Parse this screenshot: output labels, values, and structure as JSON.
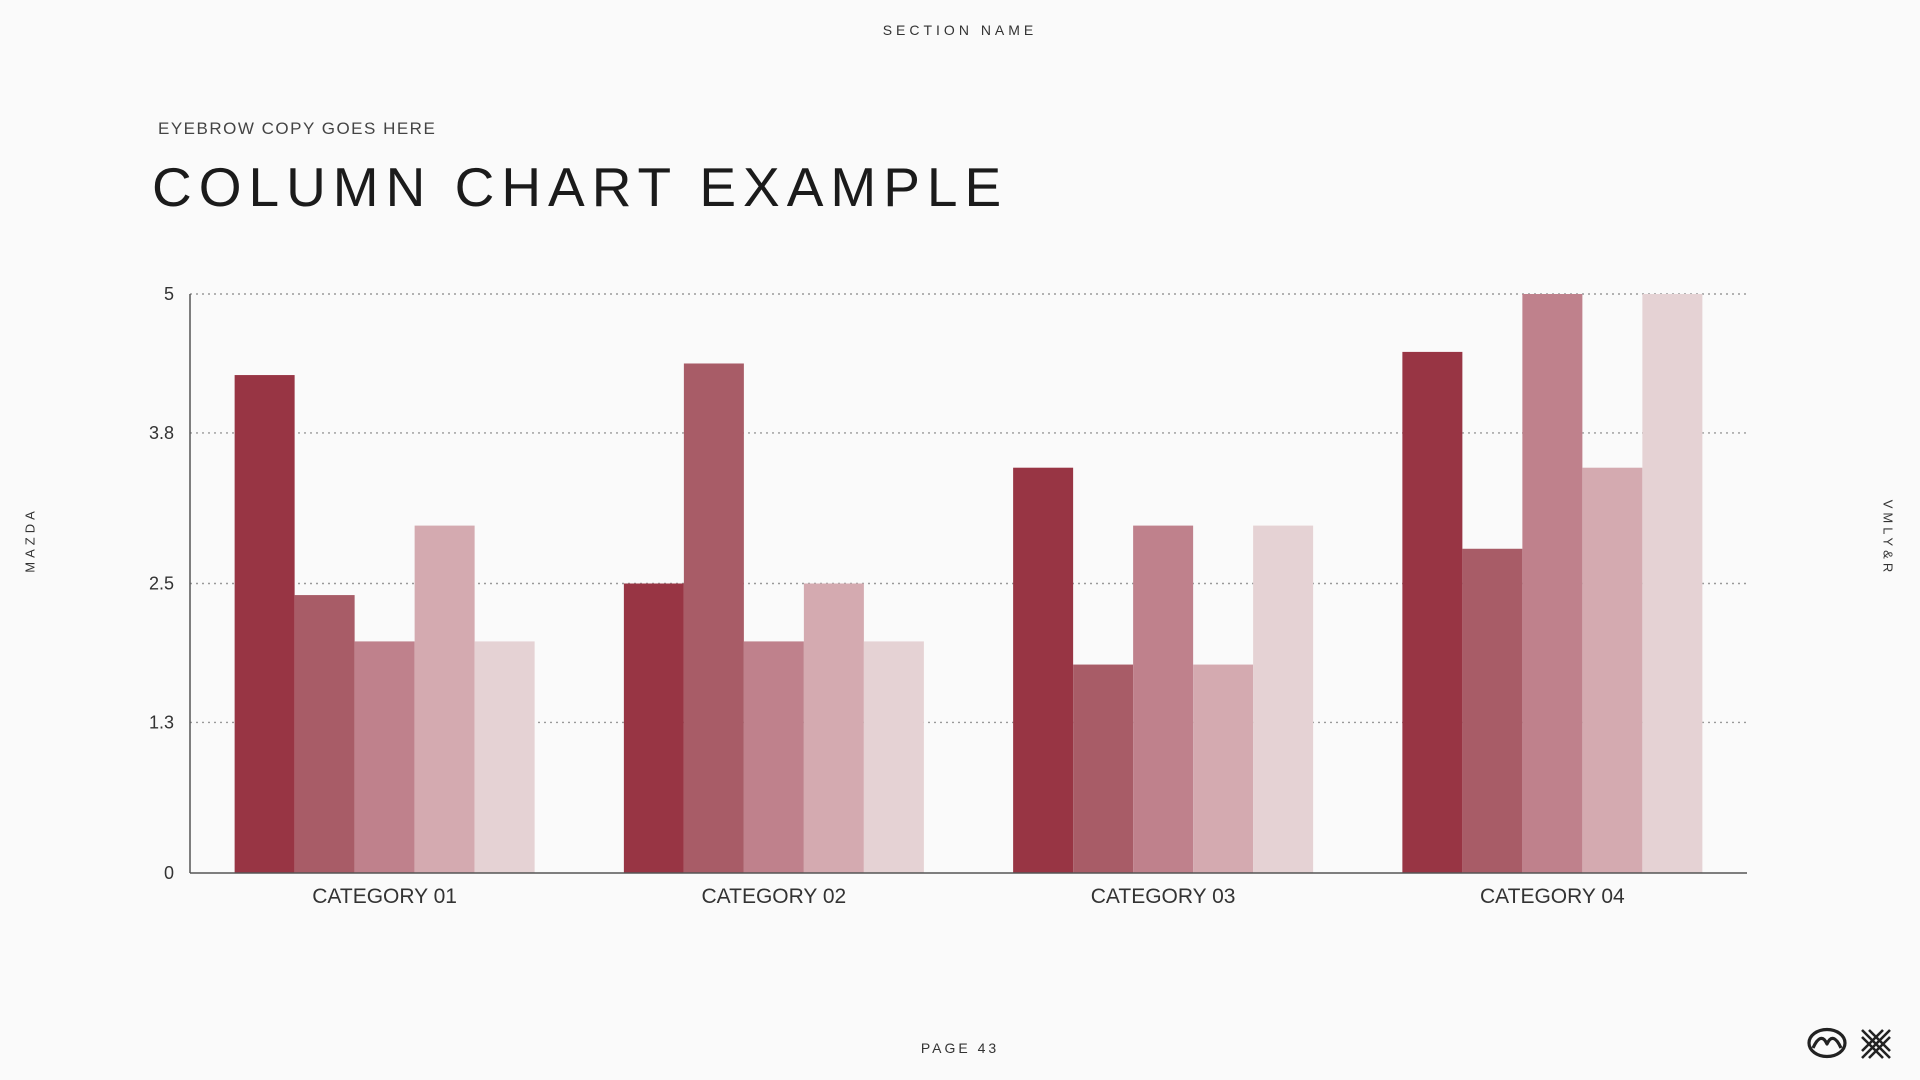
{
  "header": {
    "section_name": "SECTION NAME"
  },
  "eyebrow": "EYEBROW COPY GOES HERE",
  "title": "COLUMN CHART EXAMPLE",
  "side_left": "MAZDA",
  "side_right": "VMLY&R",
  "footer": {
    "page": "PAGE 43"
  },
  "logos": {
    "left": "mazda-logo-icon",
    "right": "x-mark-logo-icon"
  },
  "chart_data": {
    "type": "bar",
    "categories": [
      "CATEGORY 01",
      "CATEGORY 02",
      "CATEGORY 03",
      "CATEGORY 04"
    ],
    "yticks": [
      0,
      1.3,
      2.5,
      3.8,
      5
    ],
    "ylim": [
      0,
      5
    ],
    "grid": true,
    "series": [
      {
        "values": [
          4.3,
          2.5,
          3.5,
          4.5
        ],
        "color": "#983544"
      },
      {
        "values": [
          2.4,
          4.4,
          1.8,
          2.8
        ],
        "color": "#a85c67"
      },
      {
        "values": [
          2.0,
          2.0,
          3.0,
          5.0
        ],
        "color": "#bf818c"
      },
      {
        "values": [
          3.0,
          2.5,
          1.8,
          3.5
        ],
        "color": "#d4aab0"
      },
      {
        "values": [
          2.0,
          2.0,
          3.0,
          5.0
        ],
        "color": "#e5d2d4"
      }
    ]
  }
}
